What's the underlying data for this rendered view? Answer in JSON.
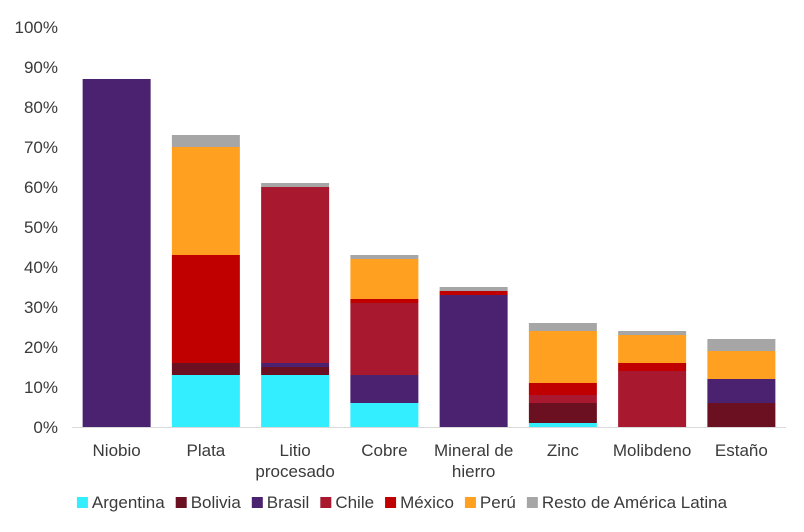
{
  "chart_data": {
    "type": "bar",
    "stacked": true,
    "ylim": [
      0,
      100
    ],
    "yticks": [
      0,
      10,
      20,
      30,
      40,
      50,
      60,
      70,
      80,
      90,
      100
    ],
    "ytick_labels": [
      "0%",
      "10%",
      "20%",
      "30%",
      "40%",
      "50%",
      "60%",
      "70%",
      "80%",
      "90%",
      "100%"
    ],
    "grid": false,
    "legend_position": "bottom",
    "categories": [
      [
        "Niobio"
      ],
      [
        "Plata"
      ],
      [
        "Litio",
        "procesado"
      ],
      [
        "Cobre"
      ],
      [
        "Mineral de",
        "hierro"
      ],
      [
        "Zinc"
      ],
      [
        "Molibdeno"
      ],
      [
        "Estaño"
      ]
    ],
    "series": [
      {
        "name": "Argentina",
        "color": "#33eeff",
        "values": [
          0,
          13,
          13,
          6,
          0,
          1,
          0,
          0
        ]
      },
      {
        "name": "Bolivia",
        "color": "#6b1020",
        "values": [
          0,
          3,
          2,
          0,
          0,
          5,
          0,
          6
        ]
      },
      {
        "name": "Brasil",
        "color": "#4b2270",
        "values": [
          87,
          0,
          1,
          7,
          33,
          0,
          0,
          6
        ]
      },
      {
        "name": "Chile",
        "color": "#a8182f",
        "values": [
          0,
          0,
          44,
          18,
          0,
          2,
          14,
          0
        ]
      },
      {
        "name": "México",
        "color": "#c00000",
        "values": [
          0,
          27,
          0,
          1,
          1,
          3,
          2,
          0
        ]
      },
      {
        "name": "Perú",
        "color": "#ffa020",
        "values": [
          0,
          27,
          0,
          10,
          0,
          13,
          7,
          7
        ]
      },
      {
        "name": "Resto de América Latina",
        "color": "#a6a6a6",
        "values": [
          0,
          3,
          1,
          1,
          1,
          2,
          1,
          3
        ]
      }
    ]
  }
}
